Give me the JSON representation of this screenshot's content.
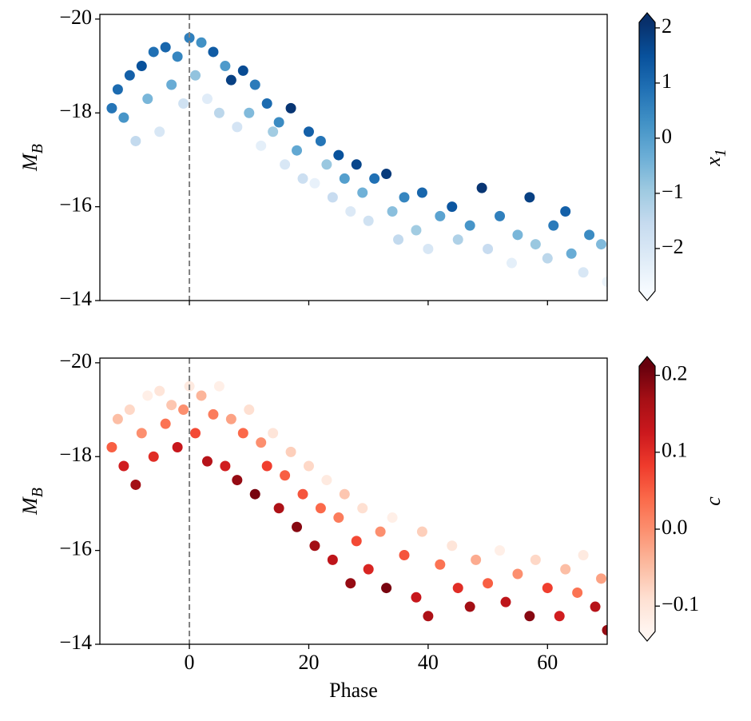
{
  "chart_data": [
    {
      "type": "scatter",
      "ylabel": "M",
      "ylabel_subscript": "B",
      "colorbar_label": "x",
      "colorbar_label_subscript": "1",
      "colormap": "Blues",
      "xlim": [
        -15,
        70
      ],
      "ylim": [
        -14,
        -20.1
      ],
      "xticks": [
        0,
        20,
        40,
        60
      ],
      "xtick_labels": false,
      "yticks": [
        {
          "value": -20,
          "label": "−20"
        },
        {
          "value": -18,
          "label": "−18"
        },
        {
          "value": -16,
          "label": "−16"
        },
        {
          "value": -14,
          "label": "−14"
        }
      ],
      "vline": 0,
      "clim": [
        -2.77,
        2.1
      ],
      "cticks": [
        {
          "value": 2,
          "label": "2"
        },
        {
          "value": 1,
          "label": "1"
        },
        0,
        {
          "value": -1,
          "label": "−1"
        },
        {
          "value": -2,
          "label": "−2"
        }
      ],
      "points": [
        [
          -13,
          -18.1,
          0.8
        ],
        [
          -12,
          -18.5,
          1.0
        ],
        [
          -11,
          -17.9,
          0.2
        ],
        [
          -10,
          -18.8,
          1.2
        ],
        [
          -9,
          -17.4,
          -1.5
        ],
        [
          -8,
          -19.0,
          1.5
        ],
        [
          -7,
          -18.3,
          -0.5
        ],
        [
          -6,
          -19.3,
          0.9
        ],
        [
          -5,
          -17.6,
          -2.0
        ],
        [
          -4,
          -19.4,
          1.1
        ],
        [
          -3,
          -18.6,
          -0.3
        ],
        [
          -2,
          -19.2,
          0.5
        ],
        [
          -1,
          -18.2,
          -1.8
        ],
        [
          0,
          -19.6,
          0.6
        ],
        [
          1,
          -18.8,
          -0.8
        ],
        [
          2,
          -19.5,
          0.3
        ],
        [
          3,
          -18.3,
          -2.2
        ],
        [
          4,
          -19.3,
          1.3
        ],
        [
          5,
          -18.0,
          -1.4
        ],
        [
          6,
          -19.0,
          0.1
        ],
        [
          7,
          -18.7,
          1.8
        ],
        [
          8,
          -17.7,
          -1.9
        ],
        [
          9,
          -18.9,
          1.6
        ],
        [
          10,
          -18.0,
          -0.6
        ],
        [
          11,
          -18.6,
          0.7
        ],
        [
          12,
          -17.3,
          -2.3
        ],
        [
          13,
          -18.2,
          1.0
        ],
        [
          14,
          -17.6,
          -1.0
        ],
        [
          15,
          -17.8,
          0.4
        ],
        [
          16,
          -16.9,
          -2.0
        ],
        [
          17,
          -18.1,
          2.0
        ],
        [
          18,
          -17.2,
          -0.2
        ],
        [
          19,
          -16.6,
          -1.7
        ],
        [
          20,
          -17.6,
          1.2
        ],
        [
          21,
          -16.5,
          -2.4
        ],
        [
          22,
          -17.4,
          0.8
        ],
        [
          23,
          -16.9,
          -0.9
        ],
        [
          24,
          -16.2,
          -1.6
        ],
        [
          25,
          -17.1,
          1.5
        ],
        [
          26,
          -16.6,
          0.0
        ],
        [
          27,
          -15.9,
          -2.1
        ],
        [
          28,
          -16.9,
          1.7
        ],
        [
          29,
          -16.3,
          -0.4
        ],
        [
          30,
          -15.7,
          -1.8
        ],
        [
          31,
          -16.6,
          0.9
        ],
        [
          33,
          -16.7,
          1.9
        ],
        [
          34,
          -15.9,
          -0.7
        ],
        [
          35,
          -15.3,
          -1.5
        ],
        [
          36,
          -16.2,
          0.5
        ],
        [
          38,
          -15.5,
          -1.0
        ],
        [
          39,
          -16.3,
          1.1
        ],
        [
          40,
          -15.1,
          -2.0
        ],
        [
          42,
          -15.8,
          -0.1
        ],
        [
          44,
          -16.0,
          1.4
        ],
        [
          45,
          -15.3,
          -1.2
        ],
        [
          47,
          -15.6,
          0.2
        ],
        [
          49,
          -16.4,
          2.0
        ],
        [
          50,
          -15.1,
          -1.6
        ],
        [
          52,
          -15.8,
          0.6
        ],
        [
          54,
          -14.8,
          -2.3
        ],
        [
          55,
          -15.4,
          -0.5
        ],
        [
          57,
          -16.2,
          1.8
        ],
        [
          58,
          -15.2,
          -0.9
        ],
        [
          60,
          -14.9,
          -1.4
        ],
        [
          61,
          -15.6,
          0.7
        ],
        [
          63,
          -15.9,
          1.2
        ],
        [
          64,
          -15.0,
          -0.3
        ],
        [
          66,
          -14.6,
          -2.0
        ],
        [
          67,
          -15.4,
          0.4
        ],
        [
          69,
          -15.2,
          -0.6
        ],
        [
          70,
          -14.4,
          -2.5
        ]
      ]
    },
    {
      "type": "scatter",
      "xlabel": "Phase",
      "ylabel": "M",
      "ylabel_subscript": "B",
      "colorbar_label": "c",
      "colormap": "Reds",
      "xlim": [
        -15,
        70
      ],
      "ylim": [
        -14,
        -20.1
      ],
      "xticks": [
        0,
        20,
        40,
        60
      ],
      "xtick_labels": true,
      "yticks": [
        {
          "value": -20,
          "label": "−20"
        },
        {
          "value": -18,
          "label": "−18"
        },
        {
          "value": -16,
          "label": "−16"
        },
        {
          "value": -14,
          "label": "−14"
        }
      ],
      "vline": 0,
      "clim": [
        -0.133,
        0.212
      ],
      "cticks": [
        0.2,
        0.1,
        {
          "value": 0,
          "label": "0.0"
        },
        {
          "value": -0.1,
          "label": "−0.1"
        }
      ],
      "points": [
        [
          -13,
          -18.2,
          0.05
        ],
        [
          -12,
          -18.8,
          -0.05
        ],
        [
          -11,
          -17.8,
          0.12
        ],
        [
          -10,
          -19.0,
          -0.08
        ],
        [
          -9,
          -17.4,
          0.17
        ],
        [
          -8,
          -18.5,
          0.0
        ],
        [
          -7,
          -19.3,
          -0.12
        ],
        [
          -6,
          -18.0,
          0.1
        ],
        [
          -5,
          -19.4,
          -0.1
        ],
        [
          -4,
          -18.7,
          0.03
        ],
        [
          -3,
          -19.1,
          -0.06
        ],
        [
          -2,
          -18.2,
          0.13
        ],
        [
          -1,
          -19.0,
          0.0
        ],
        [
          0,
          -19.5,
          -0.11
        ],
        [
          1,
          -18.5,
          0.07
        ],
        [
          2,
          -19.3,
          -0.04
        ],
        [
          3,
          -17.9,
          0.15
        ],
        [
          4,
          -18.9,
          0.02
        ],
        [
          5,
          -19.5,
          -0.12
        ],
        [
          6,
          -17.8,
          0.12
        ],
        [
          7,
          -18.8,
          -0.02
        ],
        [
          8,
          -17.5,
          0.18
        ],
        [
          9,
          -18.5,
          0.04
        ],
        [
          10,
          -19.0,
          -0.09
        ],
        [
          11,
          -17.2,
          0.2
        ],
        [
          12,
          -18.3,
          0.0
        ],
        [
          13,
          -17.8,
          0.08
        ],
        [
          14,
          -18.5,
          -0.1
        ],
        [
          15,
          -16.9,
          0.16
        ],
        [
          16,
          -17.6,
          0.05
        ],
        [
          17,
          -18.1,
          -0.07
        ],
        [
          18,
          -16.5,
          0.19
        ],
        [
          19,
          -17.2,
          0.06
        ],
        [
          20,
          -17.8,
          -0.08
        ],
        [
          21,
          -16.1,
          0.17
        ],
        [
          22,
          -16.9,
          0.04
        ],
        [
          23,
          -17.5,
          -0.11
        ],
        [
          24,
          -15.8,
          0.14
        ],
        [
          25,
          -16.7,
          0.02
        ],
        [
          26,
          -17.2,
          -0.06
        ],
        [
          27,
          -15.3,
          0.18
        ],
        [
          28,
          -16.2,
          0.07
        ],
        [
          29,
          -16.9,
          -0.09
        ],
        [
          30,
          -15.6,
          0.11
        ],
        [
          32,
          -16.4,
          0.0
        ],
        [
          33,
          -15.2,
          0.2
        ],
        [
          34,
          -16.7,
          -0.12
        ],
        [
          36,
          -15.9,
          0.06
        ],
        [
          38,
          -15.0,
          0.13
        ],
        [
          39,
          -16.4,
          -0.07
        ],
        [
          40,
          -14.6,
          0.16
        ],
        [
          42,
          -15.7,
          0.03
        ],
        [
          44,
          -16.1,
          -0.1
        ],
        [
          45,
          -15.2,
          0.1
        ],
        [
          47,
          -14.8,
          0.17
        ],
        [
          48,
          -15.8,
          -0.03
        ],
        [
          50,
          -15.3,
          0.05
        ],
        [
          52,
          -16.0,
          -0.12
        ],
        [
          53,
          -14.9,
          0.14
        ],
        [
          55,
          -15.5,
          0.0
        ],
        [
          57,
          -14.6,
          0.19
        ],
        [
          58,
          -15.8,
          -0.08
        ],
        [
          60,
          -15.2,
          0.08
        ],
        [
          62,
          -14.6,
          0.12
        ],
        [
          63,
          -15.6,
          -0.05
        ],
        [
          65,
          -15.1,
          0.03
        ],
        [
          66,
          -15.9,
          -0.11
        ],
        [
          68,
          -14.8,
          0.15
        ],
        [
          69,
          -15.4,
          -0.02
        ],
        [
          70,
          -14.3,
          0.18
        ]
      ]
    }
  ]
}
